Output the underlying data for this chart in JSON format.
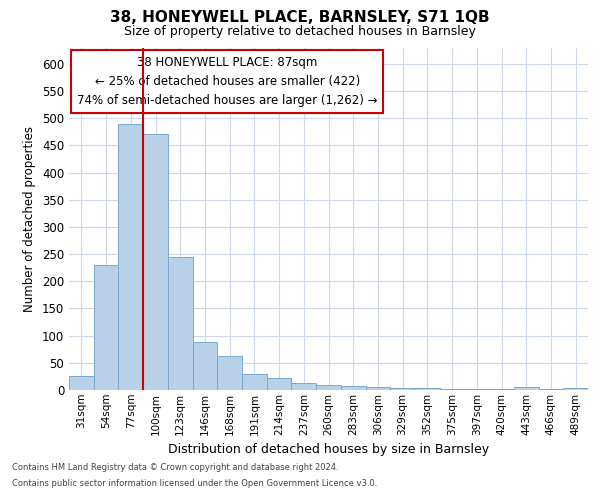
{
  "title": "38, HONEYWELL PLACE, BARNSLEY, S71 1QB",
  "subtitle": "Size of property relative to detached houses in Barnsley",
  "xlabel": "Distribution of detached houses by size in Barnsley",
  "ylabel": "Number of detached properties",
  "categories": [
    "31sqm",
    "54sqm",
    "77sqm",
    "100sqm",
    "123sqm",
    "146sqm",
    "168sqm",
    "191sqm",
    "214sqm",
    "237sqm",
    "260sqm",
    "283sqm",
    "306sqm",
    "329sqm",
    "352sqm",
    "375sqm",
    "397sqm",
    "420sqm",
    "443sqm",
    "466sqm",
    "489sqm"
  ],
  "values": [
    25,
    230,
    490,
    470,
    245,
    88,
    62,
    30,
    22,
    12,
    10,
    8,
    5,
    3,
    3,
    2,
    2,
    2,
    6,
    2,
    4
  ],
  "bar_color": "#b8d0e8",
  "bar_edgecolor": "#7aaacf",
  "highlight_index": 2,
  "highlight_linecolor": "#cc0000",
  "ylim_max": 630,
  "yticks": [
    0,
    50,
    100,
    150,
    200,
    250,
    300,
    350,
    400,
    450,
    500,
    550,
    600
  ],
  "annotation_title": "38 HONEYWELL PLACE: 87sqm",
  "annotation_line1": "← 25% of detached houses are smaller (422)",
  "annotation_line2": "74% of semi-detached houses are larger (1,262) →",
  "annotation_box_edgecolor": "#cc0000",
  "footer_line1": "Contains HM Land Registry data © Crown copyright and database right 2024.",
  "footer_line2": "Contains public sector information licensed under the Open Government Licence v3.0.",
  "background_color": "#ffffff",
  "grid_color": "#ccd8e8"
}
